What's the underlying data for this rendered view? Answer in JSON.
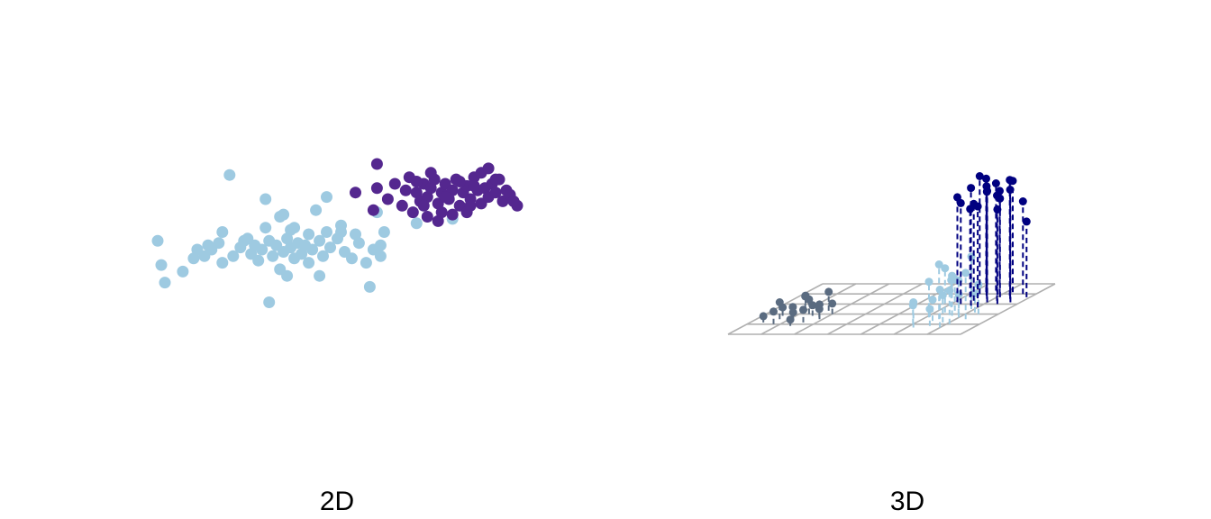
{
  "chart_data": [
    {
      "type": "scatter",
      "title": "2D",
      "xlabel": "",
      "ylabel": "",
      "axes_visible": false,
      "grid": false,
      "xlim": [
        -4,
        6
      ],
      "ylim": [
        -4.5,
        4
      ],
      "colors": {
        "cluster_a": "#9ecae1",
        "cluster_b": "#54278f"
      },
      "series": [
        {
          "color": "#9ecae1",
          "points": [
            [
              -4.0,
              -0.2
            ],
            [
              -3.9,
              -1.3
            ],
            [
              -3.8,
              -2.1
            ],
            [
              -3.3,
              -1.6
            ],
            [
              -3.0,
              -1.0
            ],
            [
              -2.9,
              -0.6
            ],
            [
              -2.6,
              -0.4
            ],
            [
              -2.5,
              -0.6
            ],
            [
              -2.3,
              -0.3
            ],
            [
              -2.2,
              -1.2
            ],
            [
              -1.9,
              -0.9
            ],
            [
              -1.7,
              -0.5
            ],
            [
              -1.6,
              -0.2
            ],
            [
              -1.4,
              -0.8
            ],
            [
              -1.3,
              -0.4
            ],
            [
              -1.2,
              -1.1
            ],
            [
              -1.1,
              -0.6
            ],
            [
              -0.9,
              -0.2
            ],
            [
              -0.8,
              -0.9
            ],
            [
              -0.7,
              -0.4
            ],
            [
              -0.6,
              -1.5
            ],
            [
              -0.5,
              -0.7
            ],
            [
              -0.4,
              -0.1
            ],
            [
              -0.3,
              -0.5
            ],
            [
              -0.2,
              -1.0
            ],
            [
              -0.1,
              -0.3
            ],
            [
              0.0,
              -0.8
            ],
            [
              0.1,
              -0.4
            ],
            [
              0.2,
              -1.2
            ],
            [
              0.3,
              -0.6
            ],
            [
              0.5,
              -0.2
            ],
            [
              0.6,
              -0.9
            ],
            [
              0.8,
              -0.5
            ],
            [
              1.0,
              -0.1
            ],
            [
              1.2,
              -0.7
            ],
            [
              1.4,
              -1.0
            ],
            [
              1.6,
              -0.3
            ],
            [
              1.8,
              -1.2
            ],
            [
              2.0,
              -0.6
            ],
            [
              2.2,
              -0.9
            ],
            [
              -1.0,
              0.4
            ],
            [
              -0.6,
              0.9
            ],
            [
              -0.2,
              0.4
            ],
            [
              0.4,
              1.2
            ],
            [
              0.7,
              0.2
            ],
            [
              1.1,
              0.5
            ],
            [
              1.5,
              0.1
            ],
            [
              -2.2,
              0.2
            ],
            [
              -0.9,
              -3.0
            ],
            [
              -0.4,
              -1.8
            ],
            [
              0.5,
              -1.8
            ],
            [
              1.9,
              -2.3
            ],
            [
              -2.0,
              2.8
            ],
            [
              -1.0,
              1.7
            ],
            [
              -0.5,
              1.0
            ],
            [
              0.7,
              1.8
            ],
            [
              1.1,
              0.2
            ],
            [
              0.2,
              0.1
            ],
            [
              -0.3,
              0.3
            ],
            [
              2.3,
              0.2
            ],
            [
              3.2,
              0.6
            ],
            [
              2.1,
              1.1
            ],
            [
              4.2,
              0.8
            ],
            [
              2.2,
              -0.4
            ],
            [
              -1.5,
              -0.1
            ],
            [
              -2.7,
              -0.9
            ]
          ]
        },
        {
          "color": "#54278f",
          "points": [
            [
              2.1,
              3.3
            ],
            [
              2.1,
              2.2
            ],
            [
              2.0,
              1.2
            ],
            [
              2.6,
              2.4
            ],
            [
              2.9,
              2.1
            ],
            [
              3.0,
              2.7
            ],
            [
              3.2,
              2.0
            ],
            [
              3.3,
              1.6
            ],
            [
              3.4,
              2.4
            ],
            [
              3.5,
              1.8
            ],
            [
              3.6,
              2.2
            ],
            [
              3.7,
              2.6
            ],
            [
              3.8,
              1.5
            ],
            [
              3.9,
              2.0
            ],
            [
              4.0,
              2.4
            ],
            [
              4.1,
              1.7
            ],
            [
              4.2,
              2.1
            ],
            [
              4.3,
              2.6
            ],
            [
              4.4,
              1.4
            ],
            [
              4.5,
              2.0
            ],
            [
              4.6,
              2.3
            ],
            [
              4.7,
              1.7
            ],
            [
              4.8,
              2.7
            ],
            [
              4.9,
              2.1
            ],
            [
              5.0,
              1.5
            ],
            [
              5.1,
              2.2
            ],
            [
              5.2,
              1.8
            ],
            [
              5.3,
              2.4
            ],
            [
              5.4,
              2.0
            ],
            [
              5.5,
              2.6
            ],
            [
              5.6,
              1.6
            ],
            [
              5.7,
              2.1
            ],
            [
              5.8,
              1.9
            ],
            [
              6.0,
              1.4
            ],
            [
              3.1,
              1.1
            ],
            [
              3.5,
              0.9
            ],
            [
              3.8,
              0.7
            ],
            [
              4.2,
              1.0
            ],
            [
              4.6,
              1.1
            ],
            [
              5.0,
              2.9
            ],
            [
              5.4,
              2.6
            ],
            [
              5.2,
              3.1
            ],
            [
              4.4,
              2.5
            ],
            [
              3.6,
              2.9
            ],
            [
              3.2,
              2.5
            ],
            [
              1.5,
              2.0
            ],
            [
              2.4,
              1.7
            ],
            [
              2.8,
              1.4
            ],
            [
              3.9,
              1.1
            ],
            [
              4.7,
              1.4
            ],
            [
              5.9,
              1.6
            ],
            [
              3.4,
              1.4
            ],
            [
              4.0,
              1.8
            ],
            [
              4.8,
              2.3
            ]
          ]
        }
      ]
    },
    {
      "type": "scatter3d",
      "title": "3D",
      "xlabel": "",
      "ylabel": "",
      "zlabel": "",
      "axes_visible": false,
      "floor_grid": true,
      "drop_lines": true,
      "zlim": [
        0,
        6
      ],
      "colors": {
        "cluster_a": "#5a6b80",
        "cluster_b": "#9ecae1",
        "cluster_c": "#000080",
        "grid": "#b0b0b0"
      },
      "series": [
        {
          "color": "#5a6b80",
          "points": [
            [
              -2.6,
              -0.3,
              0.3
            ],
            [
              -2.4,
              0.1,
              0.4
            ],
            [
              -2.2,
              -0.4,
              0.6
            ],
            [
              -2.0,
              0.0,
              0.5
            ],
            [
              -1.9,
              0.3,
              0.8
            ],
            [
              -1.8,
              -0.2,
              0.4
            ],
            [
              -1.7,
              0.2,
              0.7
            ],
            [
              -1.6,
              -0.5,
              0.3
            ],
            [
              -1.5,
              0.1,
              0.5
            ],
            [
              -1.4,
              -0.3,
              0.6
            ],
            [
              -1.3,
              0.4,
              0.9
            ],
            [
              -1.2,
              0.0,
              0.4
            ],
            [
              -1.1,
              -0.1,
              0.7
            ],
            [
              -1.0,
              0.2,
              0.5
            ],
            [
              -2.1,
              0.5,
              0.6
            ],
            [
              -2.3,
              -0.1,
              0.8
            ]
          ]
        },
        {
          "color": "#9ecae1",
          "points": [
            [
              2.0,
              -0.4,
              0.9
            ],
            [
              2.1,
              0.0,
              1.7
            ],
            [
              2.2,
              -0.6,
              1.2
            ],
            [
              2.3,
              0.3,
              2.1
            ],
            [
              2.4,
              -0.2,
              1.0
            ],
            [
              2.5,
              0.4,
              1.5
            ],
            [
              2.6,
              -0.5,
              0.8
            ],
            [
              2.7,
              0.1,
              1.9
            ],
            [
              2.8,
              -0.3,
              1.3
            ],
            [
              2.9,
              0.5,
              2.5
            ],
            [
              3.0,
              0.0,
              1.1
            ],
            [
              3.1,
              -0.4,
              1.6
            ],
            [
              3.2,
              0.3,
              0.9
            ],
            [
              3.3,
              -0.1,
              2.2
            ],
            [
              3.4,
              0.2,
              1.4
            ],
            [
              2.5,
              -0.1,
              2.6
            ],
            [
              2.8,
              0.2,
              1.6
            ],
            [
              3.0,
              -0.6,
              1.8
            ],
            [
              2.2,
              0.6,
              1.3
            ]
          ]
        },
        {
          "color": "#000080",
          "points": [
            [
              2.1,
              0.9,
              5.0
            ],
            [
              2.2,
              1.2,
              4.2
            ],
            [
              2.3,
              0.8,
              4.8
            ],
            [
              2.4,
              1.5,
              5.4
            ],
            [
              2.5,
              1.0,
              4.6
            ],
            [
              2.6,
              1.3,
              5.2
            ],
            [
              2.7,
              0.7,
              5.6
            ],
            [
              2.8,
              1.1,
              5.1
            ],
            [
              2.9,
              1.4,
              4.9
            ],
            [
              3.0,
              0.9,
              5.3
            ],
            [
              3.1,
              1.2,
              4.7
            ],
            [
              3.2,
              1.0,
              5.0
            ],
            [
              3.3,
              1.3,
              5.5
            ],
            [
              3.4,
              0.8,
              4.5
            ],
            [
              3.5,
              1.1,
              5.2
            ],
            [
              3.6,
              1.4,
              4.4
            ],
            [
              3.7,
              0.9,
              5.8
            ],
            [
              3.9,
              1.2,
              3.6
            ],
            [
              2.6,
              1.6,
              5.1
            ],
            [
              3.2,
              1.5,
              5.3
            ],
            [
              2.3,
              1.4,
              5.6
            ],
            [
              3.0,
              0.6,
              4.8
            ]
          ]
        }
      ]
    }
  ]
}
